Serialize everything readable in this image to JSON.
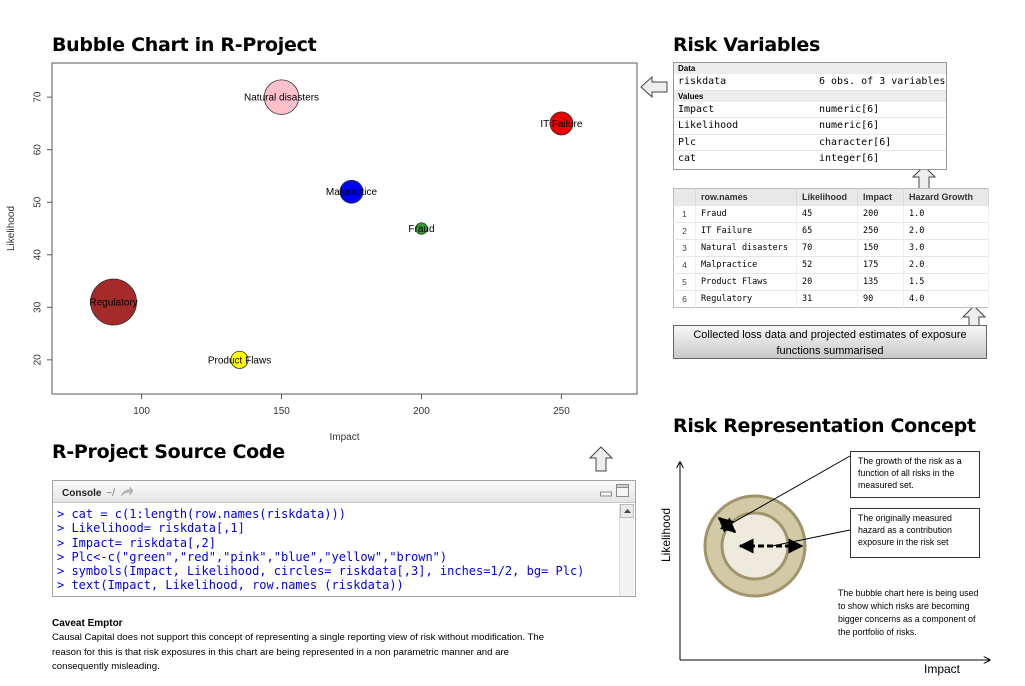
{
  "headings": {
    "bubble_chart": "Bubble Chart in R-Project",
    "risk_variables": "Risk Variables",
    "source_code": "R-Project Source Code",
    "concept": "Risk Representation Concept"
  },
  "chart_data": {
    "type": "scatter",
    "title": "",
    "xlabel": "Impact",
    "ylabel": "Likelihood",
    "xlim": [
      68,
      277
    ],
    "ylim": [
      13.5,
      76.5
    ],
    "xticks": [
      100,
      150,
      200,
      250
    ],
    "yticks": [
      20,
      30,
      40,
      50,
      60,
      70
    ],
    "grid": false,
    "points": [
      {
        "label": "Fraud",
        "x": 200,
        "y": 45,
        "size": 1.0,
        "color": "#2e9f2e"
      },
      {
        "label": "IT Failure",
        "x": 250,
        "y": 65,
        "size": 2.0,
        "color": "#ee0000"
      },
      {
        "label": "Natural disasters",
        "x": 150,
        "y": 70,
        "size": 3.0,
        "color": "#ffc0cb"
      },
      {
        "label": "Malpractice",
        "x": 175,
        "y": 52,
        "size": 2.0,
        "color": "#0000ff"
      },
      {
        "label": "Product Flaws",
        "x": 135,
        "y": 20,
        "size": 1.5,
        "color": "#ffff00"
      },
      {
        "label": "Regulatory",
        "x": 90,
        "y": 31,
        "size": 4.0,
        "color": "#a52a2a"
      }
    ]
  },
  "risk_variables": {
    "data_label": "Data",
    "data_rows": [
      {
        "name": "riskdata",
        "value": "6 obs. of 3 variables"
      }
    ],
    "values_label": "Values",
    "value_rows": [
      {
        "name": "Impact",
        "value": "numeric[6]"
      },
      {
        "name": "Likelihood",
        "value": "numeric[6]"
      },
      {
        "name": "Plc",
        "value": "character[6]"
      },
      {
        "name": "cat",
        "value": "integer[6]"
      }
    ]
  },
  "data_table": {
    "headers": [
      "",
      "row.names",
      "Likelihood",
      "Impact",
      "Hazard Growth"
    ],
    "rows": [
      [
        "1",
        "Fraud",
        "45",
        "200",
        "1.0"
      ],
      [
        "2",
        "IT Failure",
        "65",
        "250",
        "2.0"
      ],
      [
        "3",
        "Natural disasters",
        "70",
        "150",
        "3.0"
      ],
      [
        "4",
        "Malpractice",
        "52",
        "175",
        "2.0"
      ],
      [
        "5",
        "Product Flaws",
        "20",
        "135",
        "1.5"
      ],
      [
        "6",
        "Regulatory",
        "31",
        "90",
        "4.0"
      ]
    ]
  },
  "table_note": "Collected loss data and projected estimates of exposure functions summarised",
  "console": {
    "title": "Console",
    "path": "~/",
    "lines": [
      "> cat = c(1:length(row.names(riskdata)))",
      "> Likelihood= riskdata[,1]",
      "> Impact= riskdata[,2]",
      "> Plc<-c(\"green\",\"red\",\"pink\",\"blue\",\"yellow\",\"brown\")",
      "> symbols(Impact, Likelihood, circles= riskdata[,3], inches=1/2, bg= Plc)",
      "> text(Impact, Likelihood, row.names (riskdata))"
    ]
  },
  "caveat": {
    "title": "Caveat Emptor",
    "text": "Causal Capital does not support this concept of representing a single reporting view of risk without modification. The reason for this is that risk exposures in this chart are being represented in a non parametric manner and are consequently misleading."
  },
  "concept": {
    "y_axis": "Likelihood",
    "x_axis": "Impact",
    "callout_growth": "The growth of the risk as a function of all risks in the measured set.",
    "callout_measured": "The originally measured hazard as a contribution exposure in the risk set",
    "description": "The bubble chart here is being used to show which risks are becoming bigger concerns as a component of the portfolio of risks.",
    "outer_color": "#d2c9a6",
    "inner_color": "#eeeade",
    "ring_stroke": "#a0946a"
  }
}
